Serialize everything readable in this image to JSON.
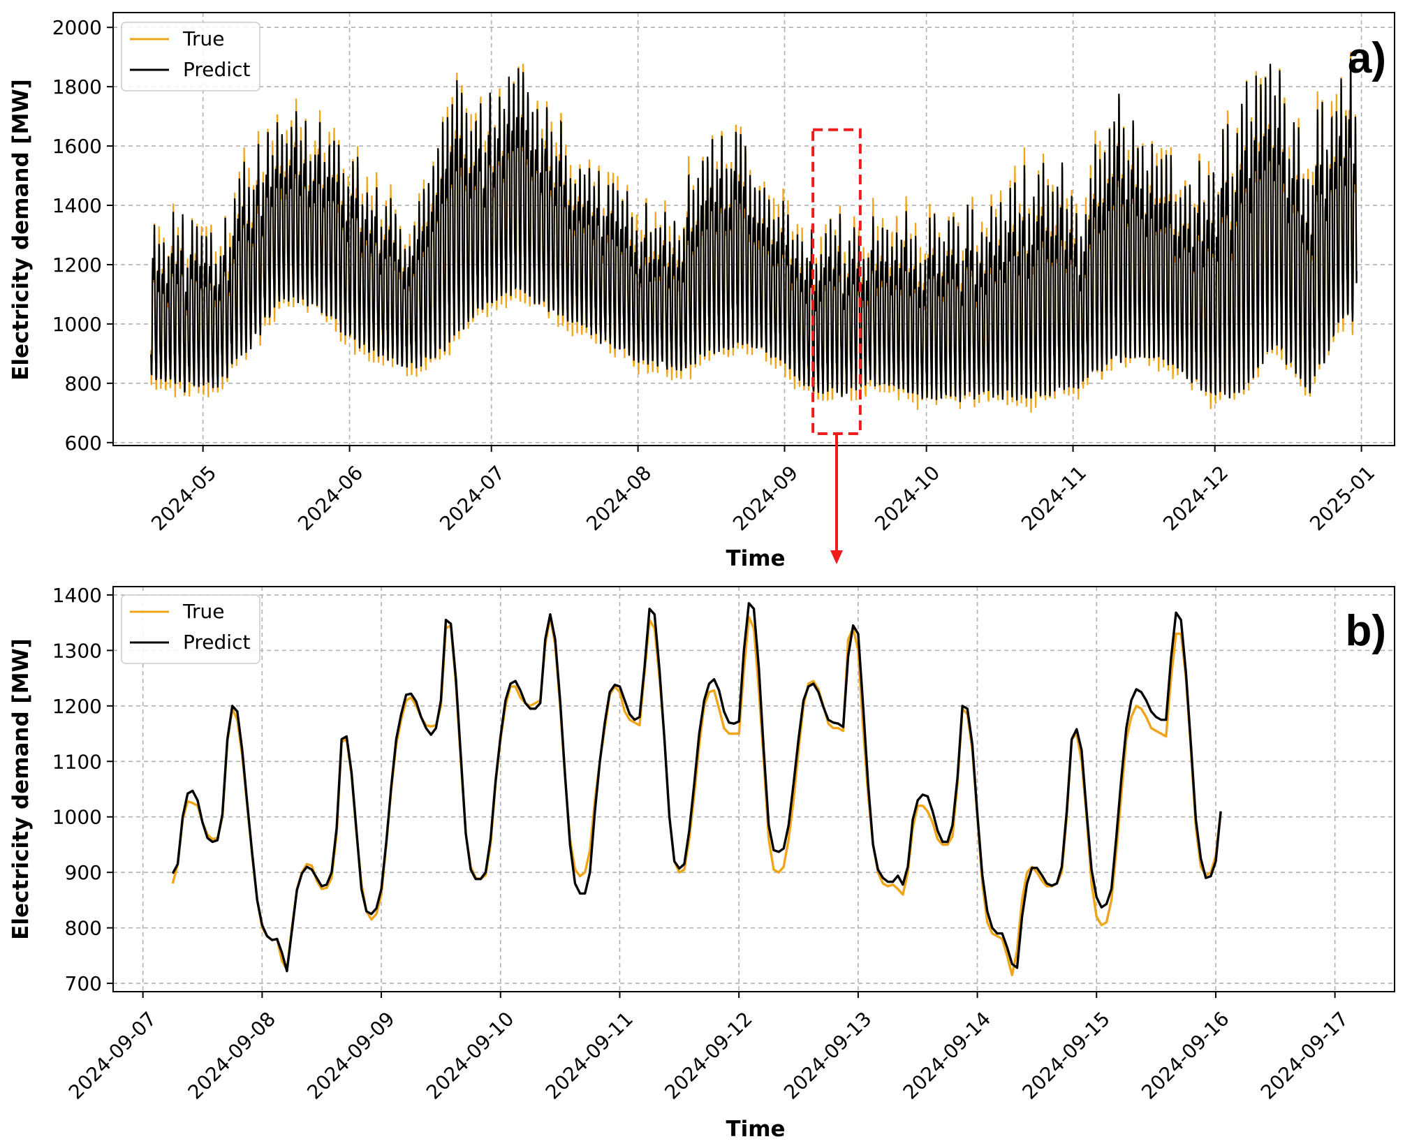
{
  "colors": {
    "true": "#f0a418",
    "predict": "#000000",
    "highlight": "#ee1c1c"
  },
  "chart_data": [
    {
      "panel": "a)",
      "type": "line",
      "xlabel": "Time",
      "ylabel": "Electricity demand [MW]",
      "xlim": [
        "2024-04-12",
        "2025-01-08"
      ],
      "ylim": [
        590,
        2050
      ],
      "x_ticks": [
        "2024-05",
        "2024-06",
        "2024-07",
        "2024-08",
        "2024-09",
        "2024-10",
        "2024-11",
        "2024-12",
        "2025-01"
      ],
      "y_ticks": [
        600,
        800,
        1000,
        1200,
        1400,
        1600,
        1800,
        2000
      ],
      "grid": true,
      "legend": {
        "position": "top-left",
        "entries": [
          "True",
          "Predict"
        ]
      },
      "x_start": "2024-04-20",
      "x_end": "2024-12-31",
      "weekly_envelope_predict": [
        {
          "week_of": "2024-04-20",
          "min": 780,
          "max": 1400
        },
        {
          "week_of": "2024-04-27",
          "min": 740,
          "max": 1380
        },
        {
          "week_of": "2024-05-04",
          "min": 760,
          "max": 1300
        },
        {
          "week_of": "2024-05-11",
          "min": 880,
          "max": 1650
        },
        {
          "week_of": "2024-05-18",
          "min": 1040,
          "max": 1740
        },
        {
          "week_of": "2024-05-25",
          "min": 1020,
          "max": 1780
        },
        {
          "week_of": "2024-06-01",
          "min": 900,
          "max": 1620
        },
        {
          "week_of": "2024-06-08",
          "min": 850,
          "max": 1470
        },
        {
          "week_of": "2024-06-15",
          "min": 810,
          "max": 1400
        },
        {
          "week_of": "2024-06-22",
          "min": 860,
          "max": 1850
        },
        {
          "week_of": "2024-06-29",
          "min": 1000,
          "max": 1800
        },
        {
          "week_of": "2024-07-06",
          "min": 1050,
          "max": 1920
        },
        {
          "week_of": "2024-07-13",
          "min": 1000,
          "max": 1800
        },
        {
          "week_of": "2024-07-20",
          "min": 950,
          "max": 1600
        },
        {
          "week_of": "2024-07-27",
          "min": 880,
          "max": 1500
        },
        {
          "week_of": "2024-08-03",
          "min": 830,
          "max": 1420
        },
        {
          "week_of": "2024-08-10",
          "min": 800,
          "max": 1450
        },
        {
          "week_of": "2024-08-17",
          "min": 850,
          "max": 1800
        },
        {
          "week_of": "2024-08-24",
          "min": 880,
          "max": 1640
        },
        {
          "week_of": "2024-08-31",
          "min": 840,
          "max": 1480
        },
        {
          "week_of": "2024-09-07",
          "min": 725,
          "max": 1380
        },
        {
          "week_of": "2024-09-14",
          "min": 730,
          "max": 1380
        },
        {
          "week_of": "2024-09-21",
          "min": 760,
          "max": 1390
        },
        {
          "week_of": "2024-09-28",
          "min": 720,
          "max": 1420
        },
        {
          "week_of": "2024-10-05",
          "min": 700,
          "max": 1410
        },
        {
          "week_of": "2024-10-12",
          "min": 720,
          "max": 1440
        },
        {
          "week_of": "2024-10-19",
          "min": 700,
          "max": 1480
        },
        {
          "week_of": "2024-10-26",
          "min": 690,
          "max": 1720
        },
        {
          "week_of": "2024-11-02",
          "min": 750,
          "max": 1440
        },
        {
          "week_of": "2024-11-09",
          "min": 800,
          "max": 1840
        },
        {
          "week_of": "2024-11-16",
          "min": 840,
          "max": 1720
        },
        {
          "week_of": "2024-11-23",
          "min": 800,
          "max": 1560
        },
        {
          "week_of": "2024-11-30",
          "min": 700,
          "max": 1650
        },
        {
          "week_of": "2024-12-07",
          "min": 690,
          "max": 1880
        },
        {
          "week_of": "2024-12-14",
          "min": 860,
          "max": 1950
        },
        {
          "week_of": "2024-12-21",
          "min": 700,
          "max": 1750
        },
        {
          "week_of": "2024-12-28",
          "min": 950,
          "max": 1970
        }
      ],
      "annotations": [
        {
          "type": "dashed-rectangle",
          "x_from": "2024-09-07",
          "x_to": "2024-09-17",
          "y_from": 630,
          "y_to": 1655,
          "color": "#ee1c1c"
        },
        {
          "type": "arrow",
          "from_panel": "a)",
          "to_panel": "b)",
          "color": "#ee1c1c"
        }
      ]
    },
    {
      "panel": "b)",
      "type": "line",
      "xlabel": "Time",
      "ylabel": "Electricity demand [MW]",
      "xlim": [
        "2024-09-06 18:00",
        "2024-09-17 12:00"
      ],
      "ylim": [
        685,
        1415
      ],
      "x_ticks": [
        "2024-09-07",
        "2024-09-08",
        "2024-09-09",
        "2024-09-10",
        "2024-09-11",
        "2024-09-12",
        "2024-09-13",
        "2024-09-14",
        "2024-09-15",
        "2024-09-16",
        "2024-09-17"
      ],
      "y_ticks": [
        700,
        800,
        900,
        1000,
        1100,
        1200,
        1300,
        1400
      ],
      "grid": true,
      "legend": {
        "position": "top-left",
        "entries": [
          "True",
          "Predict"
        ]
      },
      "x_start": "2024-09-07 06:00",
      "x_step_hours": 1,
      "series": [
        {
          "name": "True",
          "values": [
            880,
            915,
            995,
            1028,
            1025,
            1020,
            990,
            968,
            960,
            962,
            1000,
            1135,
            1195,
            1175,
            1110,
            1020,
            930,
            850,
            800,
            785,
            778,
            780,
            740,
            725,
            800,
            870,
            900,
            915,
            912,
            885,
            870,
            872,
            890,
            970,
            1135,
            1140,
            1075,
            970,
            880,
            830,
            815,
            825,
            860,
            950,
            1050,
            1130,
            1175,
            1210,
            1215,
            1200,
            1180,
            1165,
            1163,
            1165,
            1200,
            1340,
            1345,
            1240,
            1100,
            970,
            910,
            890,
            888,
            895,
            950,
            1060,
            1140,
            1200,
            1235,
            1235,
            1215,
            1205,
            1200,
            1205,
            1210,
            1310,
            1360,
            1310,
            1200,
            1070,
            960,
            905,
            893,
            900,
            940,
            1030,
            1100,
            1160,
            1220,
            1235,
            1225,
            1190,
            1175,
            1170,
            1165,
            1260,
            1355,
            1340,
            1250,
            1140,
            1000,
            920,
            900,
            905,
            960,
            1040,
            1130,
            1200,
            1225,
            1228,
            1195,
            1160,
            1150,
            1150,
            1150,
            1265,
            1360,
            1340,
            1230,
            1100,
            960,
            905,
            900,
            910,
            960,
            1030,
            1120,
            1200,
            1240,
            1245,
            1230,
            1200,
            1168,
            1160,
            1160,
            1155,
            1320,
            1340,
            1300,
            1160,
            1040,
            950,
            900,
            880,
            875,
            878,
            870,
            860,
            900,
            980,
            1020,
            1020,
            1010,
            990,
            960,
            950,
            950,
            965,
            1060,
            1195,
            1185,
            1120,
            1000,
            880,
            810,
            790,
            785,
            780,
            750,
            715,
            760,
            850,
            900,
            910,
            900,
            885,
            875,
            875,
            880,
            900,
            1000,
            1140,
            1150,
            1100,
            1000,
            880,
            820,
            805,
            810,
            850,
            940,
            1040,
            1140,
            1180,
            1200,
            1195,
            1180,
            1160,
            1155,
            1150,
            1145,
            1250,
            1330,
            1330,
            1250,
            1120,
            980,
            910,
            895,
            900,
            930,
            1010
          ]
        },
        {
          "name": "Predict",
          "values": [
            898,
            915,
            1000,
            1042,
            1047,
            1030,
            990,
            962,
            955,
            958,
            1005,
            1140,
            1200,
            1190,
            1120,
            1025,
            935,
            850,
            805,
            785,
            778,
            780,
            755,
            722,
            795,
            868,
            898,
            910,
            905,
            890,
            875,
            878,
            900,
            980,
            1140,
            1145,
            1080,
            975,
            870,
            830,
            825,
            835,
            870,
            955,
            1055,
            1140,
            1185,
            1220,
            1222,
            1208,
            1180,
            1160,
            1148,
            1160,
            1210,
            1355,
            1348,
            1250,
            1110,
            970,
            905,
            888,
            888,
            900,
            960,
            1065,
            1145,
            1210,
            1240,
            1245,
            1228,
            1205,
            1195,
            1195,
            1205,
            1320,
            1365,
            1320,
            1210,
            1075,
            950,
            880,
            862,
            862,
            900,
            1010,
            1100,
            1170,
            1225,
            1238,
            1235,
            1210,
            1185,
            1175,
            1180,
            1270,
            1375,
            1365,
            1265,
            1140,
            1000,
            920,
            907,
            915,
            975,
            1060,
            1150,
            1210,
            1240,
            1248,
            1228,
            1190,
            1170,
            1168,
            1172,
            1300,
            1385,
            1375,
            1270,
            1120,
            985,
            940,
            937,
            943,
            985,
            1060,
            1140,
            1210,
            1235,
            1240,
            1225,
            1198,
            1175,
            1170,
            1168,
            1162,
            1290,
            1345,
            1330,
            1200,
            1060,
            950,
            905,
            890,
            883,
            883,
            894,
            878,
            910,
            995,
            1030,
            1040,
            1037,
            1010,
            975,
            955,
            955,
            985,
            1070,
            1200,
            1195,
            1130,
            1005,
            895,
            830,
            800,
            790,
            790,
            765,
            735,
            728,
            820,
            880,
            908,
            908,
            895,
            880,
            876,
            880,
            910,
            1010,
            1140,
            1158,
            1120,
            1010,
            905,
            855,
            837,
            843,
            870,
            965,
            1070,
            1160,
            1210,
            1230,
            1225,
            1210,
            1190,
            1180,
            1175,
            1175,
            1285,
            1368,
            1355,
            1260,
            1130,
            995,
            925,
            890,
            893,
            920,
            1010
          ]
        }
      ]
    }
  ]
}
